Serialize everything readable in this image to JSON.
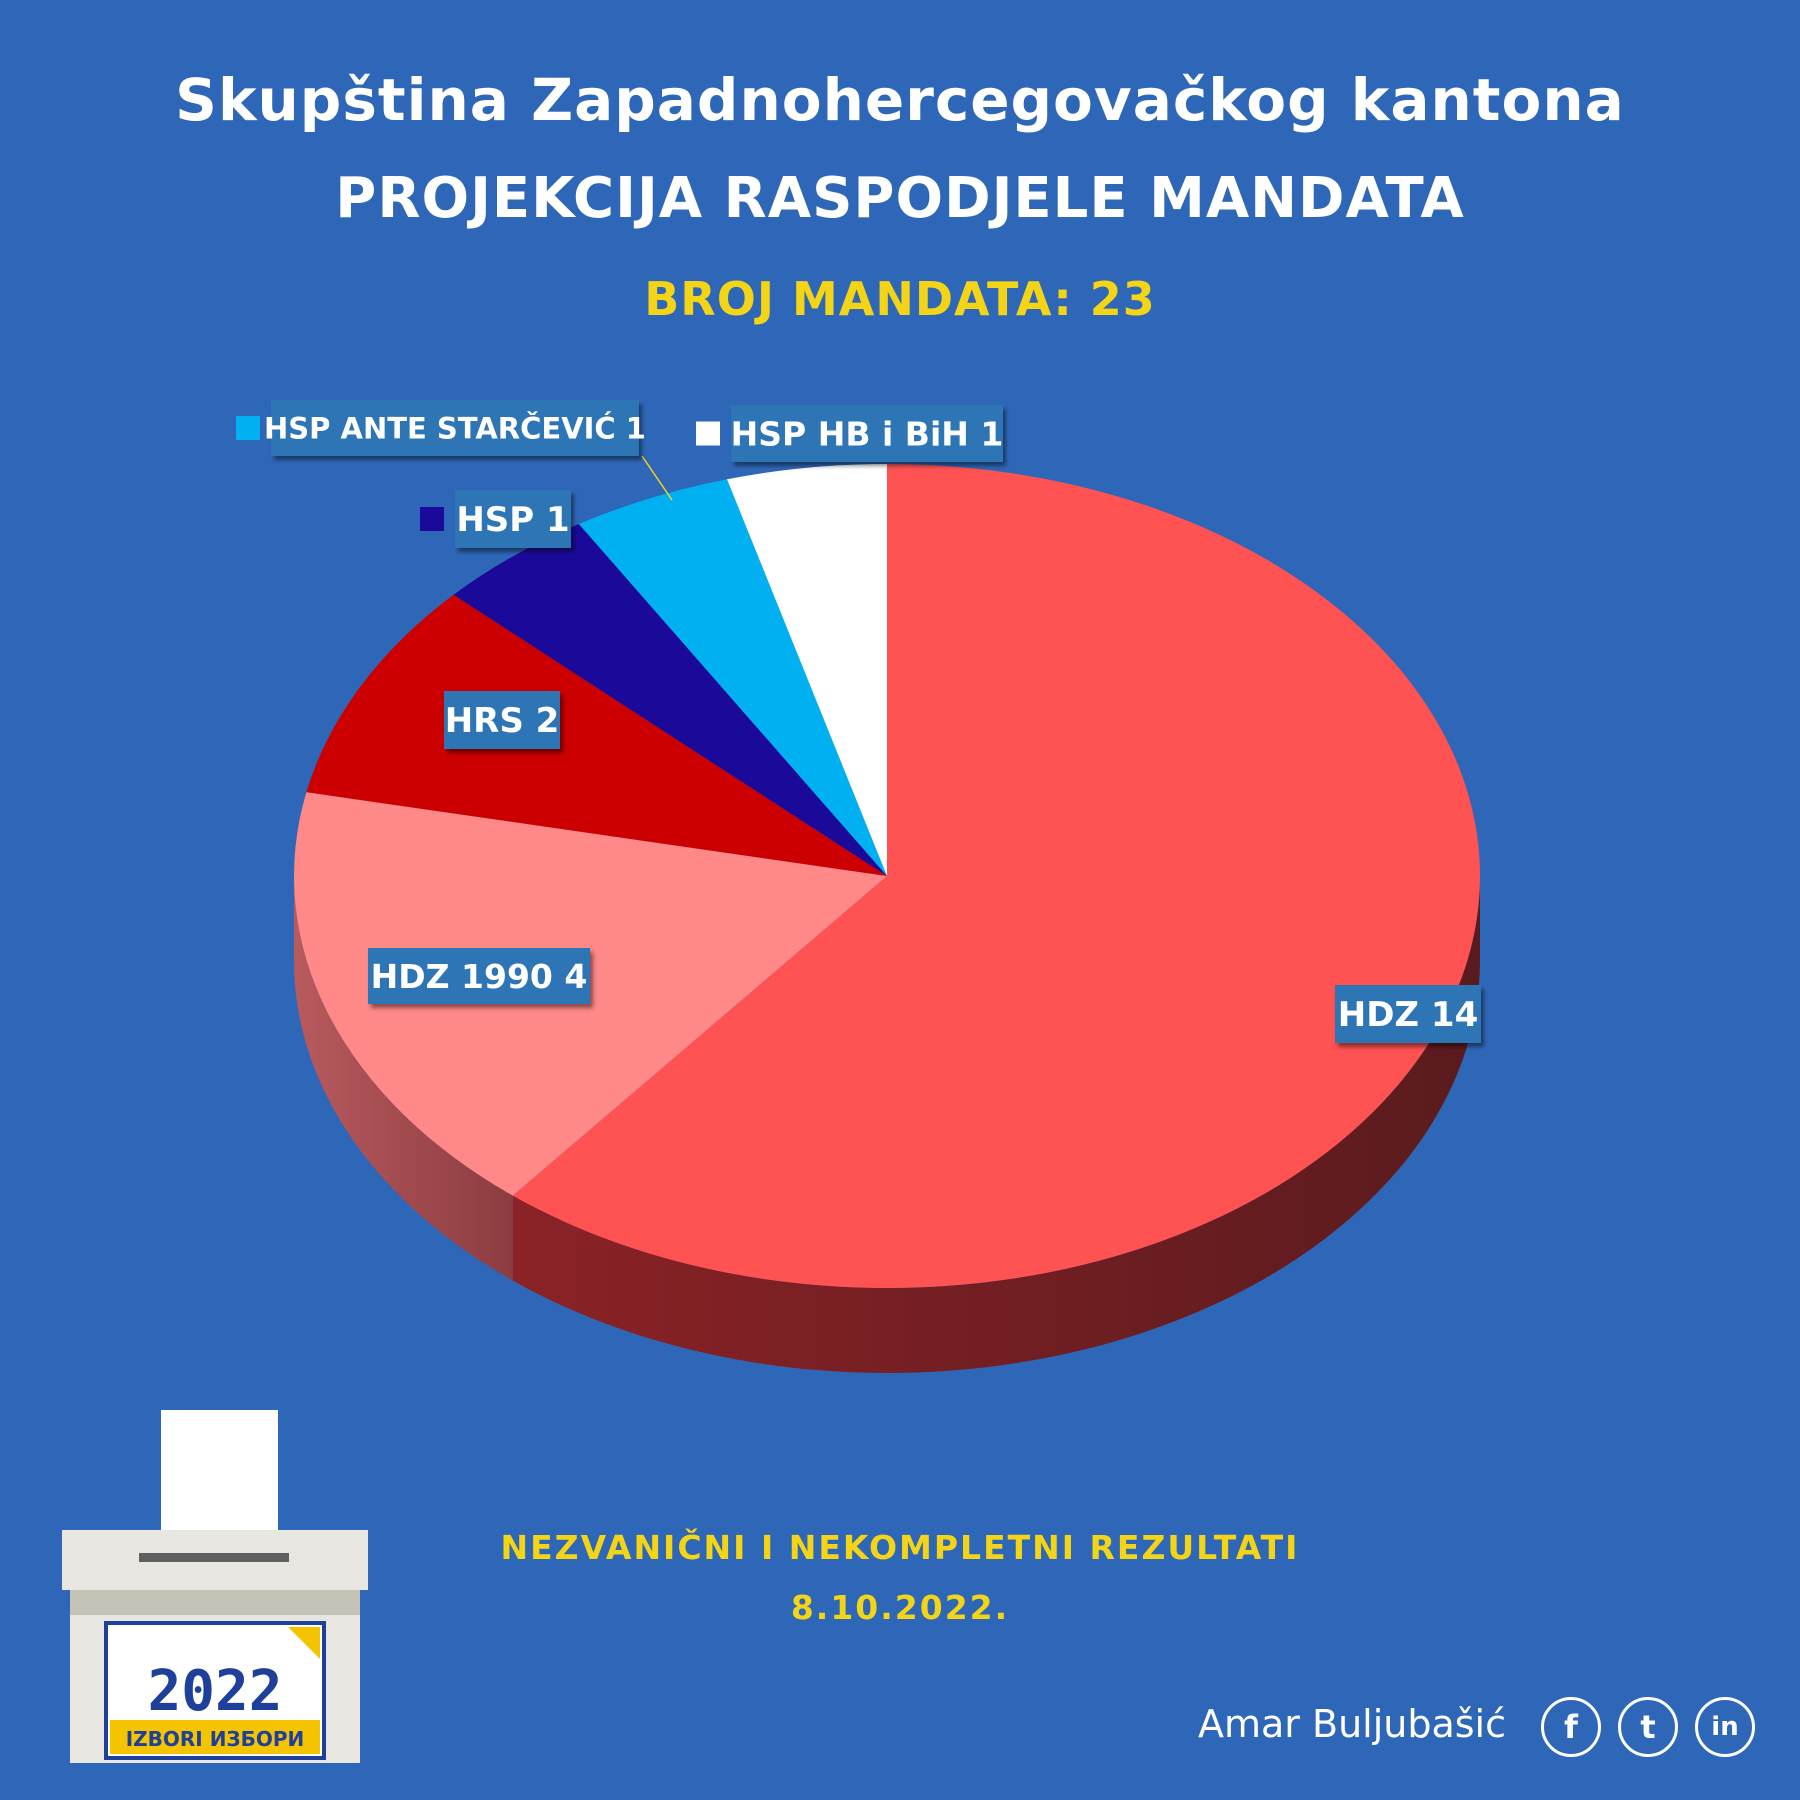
{
  "header": {
    "title": "Skupština Zapadnohercegovačkog kantona",
    "subtitle": "PROJEKCIJA RASPODJELE MANDATA",
    "seats_label": "BROJ MANDATA: 23"
  },
  "chart_data": {
    "type": "pie",
    "total": 23,
    "slices": [
      {
        "name": "HDZ",
        "value": 14,
        "label": "HDZ 14",
        "color": "#ff5252"
      },
      {
        "name": "HDZ 1990",
        "value": 4,
        "label": "HDZ 1990 4",
        "color": "#ff8888"
      },
      {
        "name": "HRS",
        "value": 2,
        "label": "HRS 2",
        "color": "#cc0000"
      },
      {
        "name": "HSP",
        "value": 1,
        "label": "HSP 1",
        "color": "#1b0a9a"
      },
      {
        "name": "HSP ANTE STARČEVIĆ",
        "value": 1,
        "label": "HSP ANTE STARČEVIĆ 1",
        "color": "#00b0f0"
      },
      {
        "name": "HSP HB i BiH",
        "value": 1,
        "label": "HSP HB i BiH 1",
        "color": "#ffffff"
      }
    ],
    "label_box_color": "#2e75b6"
  },
  "footer": {
    "note": "NEZVANIČNI I NEKOMPLETNI REZULTATI",
    "date": "8.10.2022."
  },
  "credit": {
    "author": "Amar Buljubašić",
    "icons": [
      "facebook-icon",
      "tumblr-icon",
      "linkedin-icon"
    ],
    "fb": "f",
    "tw": "t",
    "li": "in"
  },
  "logo": {
    "year": "2022",
    "text": "IZBORI ИЗБОРИ"
  }
}
